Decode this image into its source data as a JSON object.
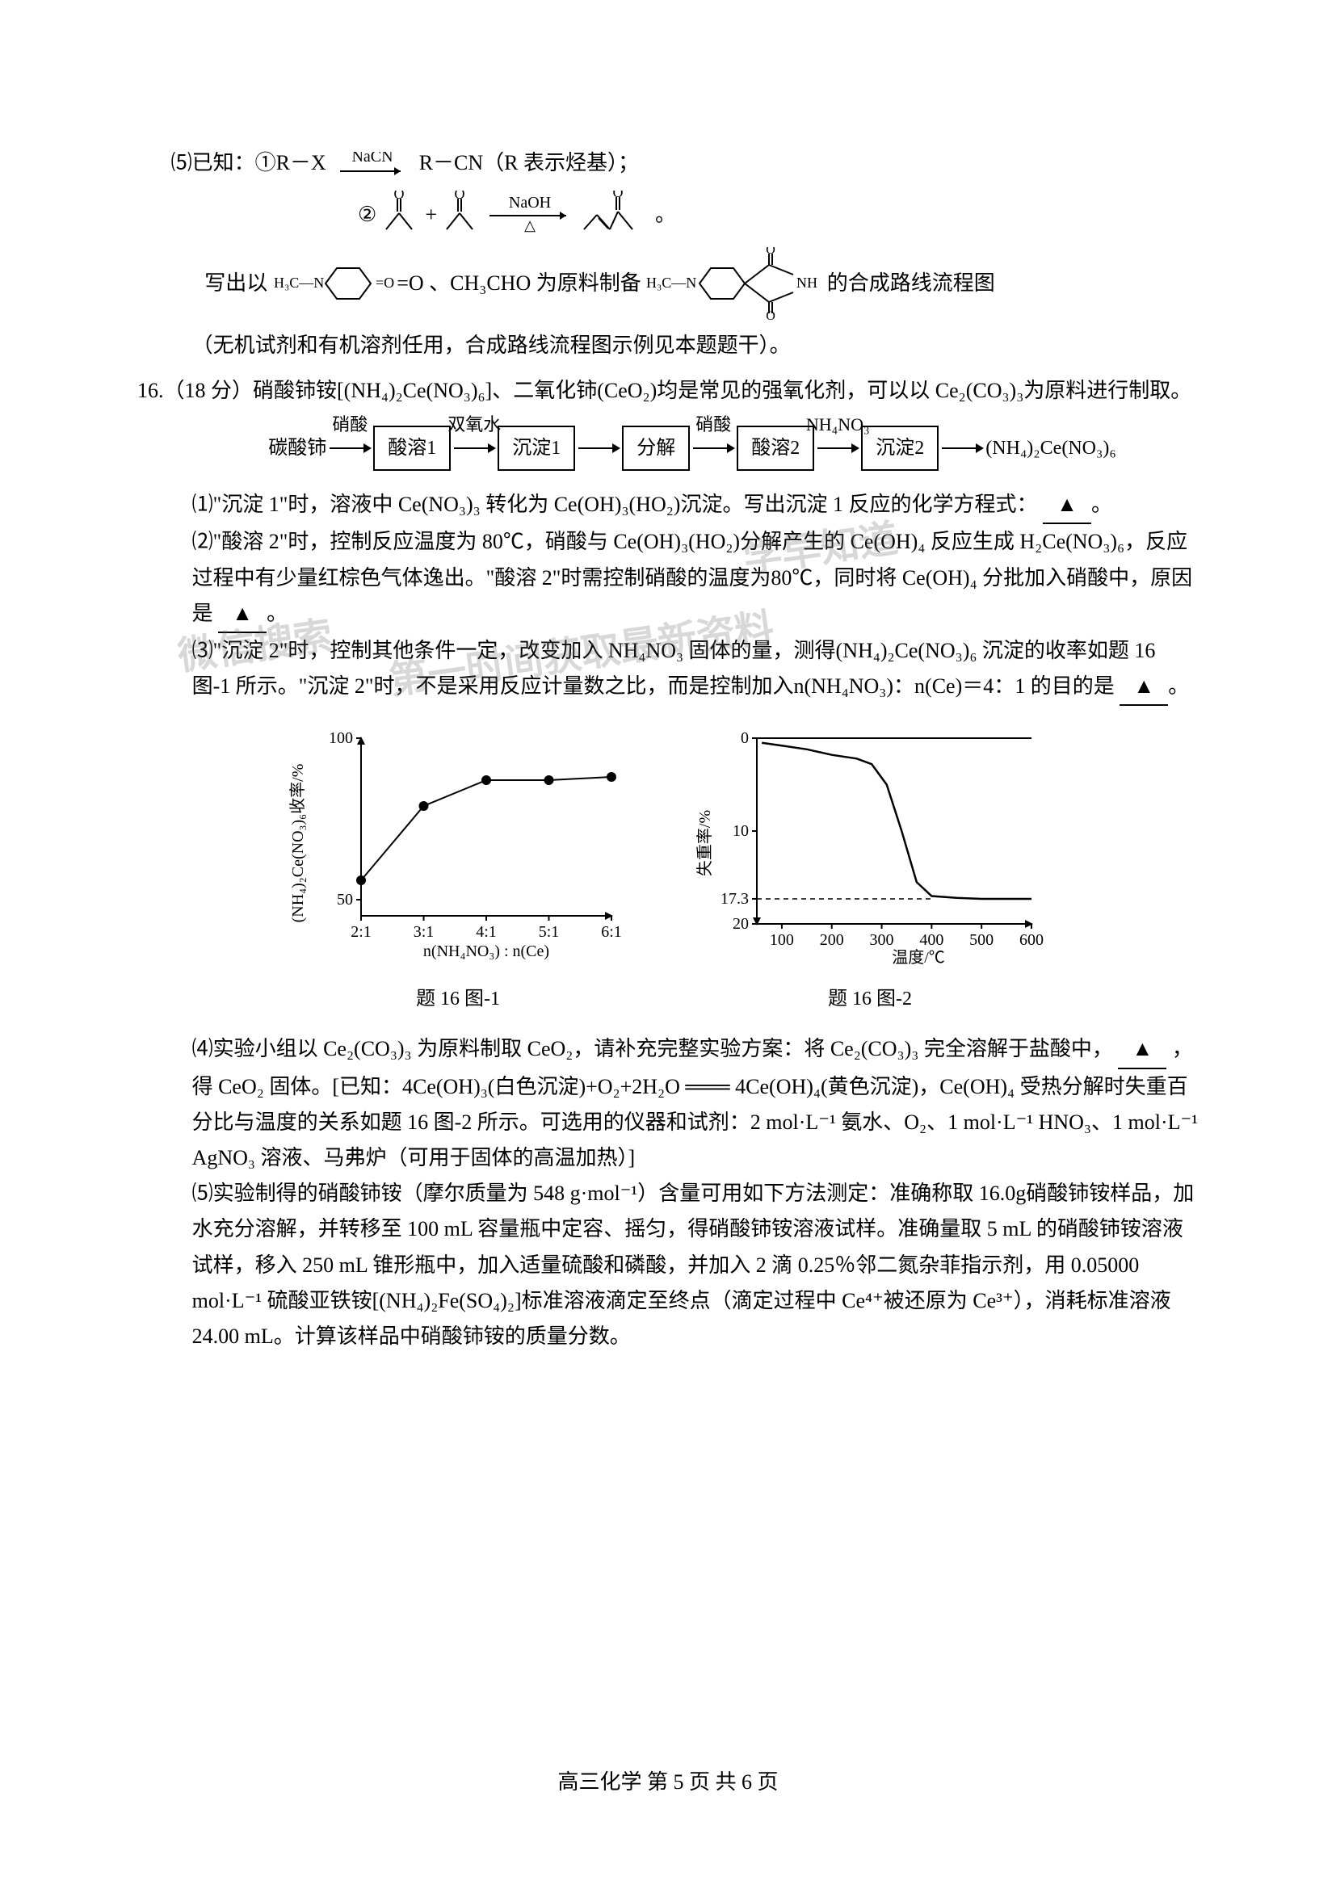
{
  "q5": {
    "prefix": "⑸已知：①R－X",
    "arrow_top": "NaCN",
    "after_arrow": "R－CN（R 表示烃基）；",
    "reaction2_label": "②",
    "reaction2_arrow_top": "NaOH",
    "reaction2_arrow_bottom": "△",
    "write_prefix": "写出以",
    "reagent1": "H₃C—N",
    "reagent_mid": "=O 、CH₃CHO 为原料制备",
    "reagent2": "H₃C—N",
    "write_suffix": " 的合成路线流程图",
    "note": "（无机试剂和有机溶剂任用，合成路线流程图示例见本题题干）。"
  },
  "q16": {
    "number": "16.",
    "points": "（18 分）",
    "intro": "硝酸铈铵[(NH₄)₂Ce(NO₃)₆]、二氧化铈(CeO₂)均是常见的强氧化剂，可以以 Ce₂(CO₃)₃为原料进行制取。",
    "flow": {
      "start": "碳酸铈",
      "a1_top": "硝酸",
      "b1": "酸溶1",
      "a2_top": "双氧水",
      "b2": "沉淀1",
      "b3": "分解",
      "a4_top": "硝酸",
      "b4": "酸溶2",
      "a5_top": "NH₄NO₃",
      "b5": "沉淀2",
      "end": "(NH₄)₂Ce(NO₃)₆"
    },
    "p1": "⑴\"沉淀 1\"时，溶液中 Ce(NO₃)₃ 转化为 Ce(OH)₃(HO₂)沉淀。写出沉淀 1 反应的化学方程式：",
    "p2": "⑵\"酸溶 2\"时，控制反应温度为 80℃，硝酸与 Ce(OH)₃(HO₂)分解产生的 Ce(OH)₄ 反应生成 H₂Ce(NO₃)₆，反应过程中有少量红棕色气体逸出。\"酸溶 2\"时需控制硝酸的温度为80℃，同时将 Ce(OH)₄ 分批加入硝酸中，原因是",
    "p3": "⑶\"沉淀 2\"时，控制其他条件一定，改变加入 NH₄NO₃ 固体的量，测得(NH₄)₂Ce(NO₃)₆ 沉淀的收率如题 16 图-1 所示。\"沉淀 2\"时，不是采用反应计量数之比，而是控制加入n(NH₄NO₃)：n(Ce)＝4：1 的目的是",
    "chart1": {
      "caption": "题 16 图-1",
      "ylabel": "(NH₄)₂Ce(NO₃)₆收率/%",
      "xlabel": "n(NH₄NO₃) : n(Ce)",
      "xticks": [
        "2:1",
        "3:1",
        "4:1",
        "5:1",
        "6:1"
      ],
      "yticks": [
        "50",
        "100"
      ],
      "points_x": [
        2,
        3,
        4,
        5,
        6
      ],
      "points_y": [
        56,
        79,
        87,
        87,
        88
      ],
      "ylim": [
        45,
        100
      ],
      "line_color": "#000000",
      "marker_color": "#000000",
      "bg": "#ffffff"
    },
    "chart2": {
      "caption": "题 16 图-2",
      "ylabel": "失重率/%",
      "xlabel": "温度/℃",
      "xticks": [
        "100",
        "200",
        "300",
        "400",
        "500",
        "600"
      ],
      "yticks": [
        "0",
        "10",
        "17.3",
        "20"
      ],
      "ylim": [
        0,
        20
      ],
      "xlim": [
        50,
        600
      ],
      "curve_x": [
        60,
        100,
        150,
        200,
        250,
        280,
        310,
        340,
        370,
        400,
        450,
        500,
        600
      ],
      "curve_y": [
        0.5,
        0.8,
        1.2,
        1.8,
        2.2,
        2.8,
        5.0,
        10.0,
        15.5,
        17.0,
        17.2,
        17.3,
        17.3
      ],
      "dash_y": 17.3,
      "line_color": "#000000",
      "bg": "#ffffff"
    },
    "p4a": "⑷实验小组以 Ce₂(CO₃)₃ 为原料制取 CeO₂，请补充完整实验方案：将 Ce₂(CO₃)₃ 完全溶解于盐酸中，",
    "p4b": "，得 CeO₂ 固体。[已知：4Ce(OH)₃(白色沉淀)+O₂+2H₂O ═══ 4Ce(OH)₄(黄色沉淀)，Ce(OH)₄ 受热分解时失重百分比与温度的关系如题 16 图-2 所示。可选用的仪器和试剂：2 mol·L⁻¹ 氨水、O₂、1 mol·L⁻¹ HNO₃、1 mol·L⁻¹ AgNO₃ 溶液、马弗炉（可用于固体的高温加热）]",
    "p5": "⑸实验制得的硝酸铈铵（摩尔质量为 548 g·mol⁻¹）含量可用如下方法测定：准确称取 16.0g硝酸铈铵样品，加水充分溶解，并转移至 100 mL 容量瓶中定容、摇匀，得硝酸铈铵溶液试样。准确量取 5 mL 的硝酸铈铵溶液试样，移入 250 mL 锥形瓶中，加入适量硫酸和磷酸，并加入 2 滴 0.25％邻二氮杂菲指示剂，用 0.05000 mol·L⁻¹ 硫酸亚铁铵[(NH₄)₂Fe(SO₄)₂]标准溶液滴定至终点（滴定过程中 Ce⁴⁺被还原为 Ce³⁺），消耗标准溶液 24.00 mL。计算该样品中硝酸铈铵的质量分数。"
  },
  "footer": "高三化学   第 5 页   共 6 页",
  "watermarks": {
    "w1": "学早知道",
    "w2": "微信搜索",
    "w3": "第一时间获取最新资料"
  }
}
